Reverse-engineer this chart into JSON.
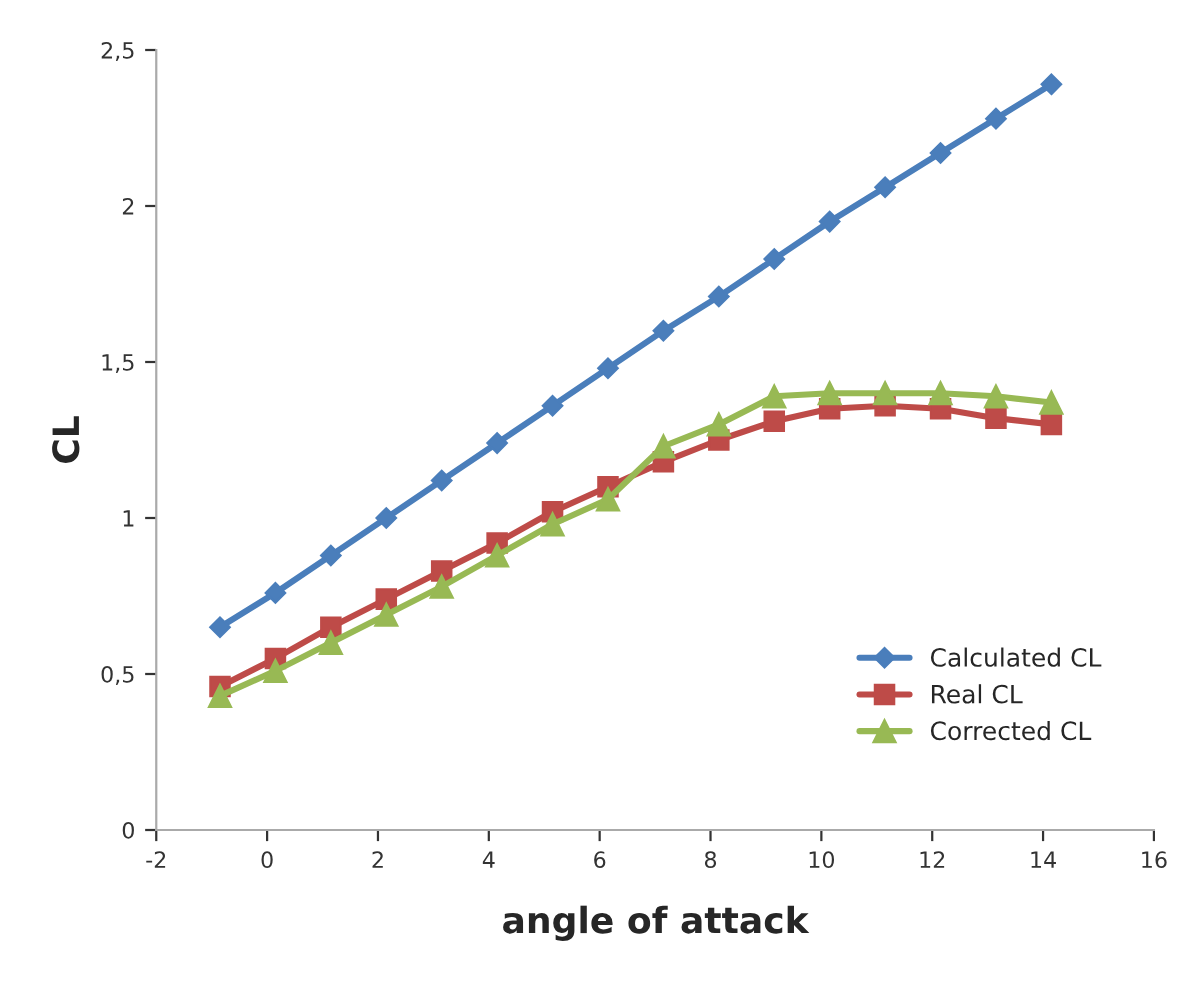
{
  "chart_data": {
    "type": "line",
    "xlabel": "angle of attack",
    "ylabel": "CL",
    "x": [
      -0.85,
      0.15,
      1.15,
      2.15,
      3.15,
      4.15,
      5.15,
      6.15,
      7.15,
      8.15,
      9.15,
      10.15,
      11.15,
      12.15,
      13.15,
      14.15
    ],
    "series": [
      {
        "name": "Calculated CL",
        "color": "#4a7ebb",
        "marker": "diamond",
        "values": [
          0.65,
          0.76,
          0.88,
          1.0,
          1.12,
          1.24,
          1.36,
          1.48,
          1.6,
          1.71,
          1.83,
          1.95,
          2.06,
          2.17,
          2.28,
          2.39
        ]
      },
      {
        "name": "Real CL",
        "color": "#be4b48",
        "marker": "square",
        "values": [
          0.46,
          0.55,
          0.65,
          0.74,
          0.83,
          0.92,
          1.02,
          1.1,
          1.18,
          1.25,
          1.31,
          1.35,
          1.36,
          1.35,
          1.32,
          1.3
        ]
      },
      {
        "name": "Corrected CL",
        "color": "#98b954",
        "marker": "triangle",
        "values": [
          0.43,
          0.51,
          0.6,
          0.69,
          0.78,
          0.88,
          0.98,
          1.06,
          1.23,
          1.3,
          1.39,
          1.4,
          1.4,
          1.4,
          1.39,
          1.37
        ]
      }
    ],
    "xlim": [
      -2,
      16
    ],
    "xticks": [
      -2,
      0,
      2,
      4,
      6,
      8,
      10,
      12,
      14,
      16
    ],
    "ylim": [
      0,
      2.5
    ],
    "yticks": [
      0,
      {
        "value": 0.5,
        "label": "0,5"
      },
      1,
      {
        "value": 1.5,
        "label": "1,5"
      },
      2,
      {
        "value": 2.5,
        "label": "2,5"
      }
    ],
    "grid": false,
    "legend": "bottom right",
    "line_style": "solid"
  }
}
